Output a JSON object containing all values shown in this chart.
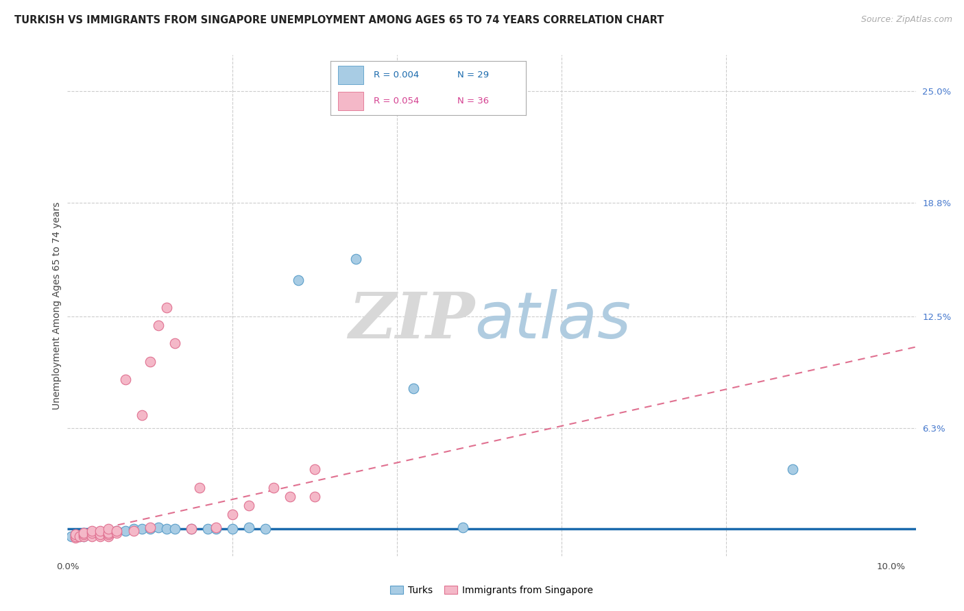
{
  "title": "TURKISH VS IMMIGRANTS FROM SINGAPORE UNEMPLOYMENT AMONG AGES 65 TO 74 YEARS CORRELATION CHART",
  "source": "Source: ZipAtlas.com",
  "ylabel": "Unemployment Among Ages 65 to 74 years",
  "xlim": [
    0.0,
    0.103
  ],
  "ylim": [
    -0.008,
    0.27
  ],
  "xticks": [
    0.0,
    0.02,
    0.04,
    0.06,
    0.08,
    0.1
  ],
  "xticklabels": [
    "0.0%",
    "",
    "",
    "",
    "",
    "10.0%"
  ],
  "ytick_positions": [
    0.063,
    0.125,
    0.188,
    0.25
  ],
  "ytick_labels": [
    "6.3%",
    "12.5%",
    "18.8%",
    "25.0%"
  ],
  "background_color": "#ffffff",
  "grid_color": "#cccccc",
  "watermark_zip": "ZIP",
  "watermark_atlas": "atlas",
  "turks_color": "#a8cce4",
  "turks_edge_color": "#5a9ec9",
  "singapore_color": "#f4b8c8",
  "singapore_edge_color": "#e07090",
  "turks_label": "Turks",
  "singapore_label": "Immigrants from Singapore",
  "turks_x": [
    0.0005,
    0.001,
    0.0015,
    0.002,
    0.002,
    0.0025,
    0.003,
    0.003,
    0.004,
    0.005,
    0.006,
    0.007,
    0.008,
    0.009,
    0.01,
    0.011,
    0.012,
    0.013,
    0.015,
    0.017,
    0.018,
    0.02,
    0.022,
    0.024,
    0.028,
    0.035,
    0.042,
    0.048,
    0.088
  ],
  "turks_y": [
    0.003,
    0.004,
    0.003,
    0.005,
    0.003,
    0.004,
    0.005,
    0.004,
    0.004,
    0.005,
    0.006,
    0.006,
    0.007,
    0.007,
    0.007,
    0.008,
    0.007,
    0.007,
    0.007,
    0.007,
    0.007,
    0.007,
    0.008,
    0.007,
    0.145,
    0.157,
    0.085,
    0.008,
    0.04
  ],
  "singapore_x": [
    0.001,
    0.001,
    0.001,
    0.0015,
    0.002,
    0.002,
    0.002,
    0.003,
    0.003,
    0.003,
    0.004,
    0.004,
    0.004,
    0.005,
    0.005,
    0.005,
    0.005,
    0.006,
    0.006,
    0.007,
    0.008,
    0.009,
    0.01,
    0.01,
    0.011,
    0.012,
    0.013,
    0.015,
    0.016,
    0.018,
    0.02,
    0.022,
    0.025,
    0.027,
    0.03,
    0.03
  ],
  "singapore_y": [
    0.002,
    0.003,
    0.004,
    0.003,
    0.003,
    0.004,
    0.005,
    0.003,
    0.005,
    0.006,
    0.003,
    0.004,
    0.006,
    0.003,
    0.004,
    0.005,
    0.007,
    0.005,
    0.006,
    0.09,
    0.006,
    0.07,
    0.008,
    0.1,
    0.12,
    0.13,
    0.11,
    0.007,
    0.03,
    0.008,
    0.015,
    0.02,
    0.03,
    0.025,
    0.025,
    0.04
  ],
  "turks_trendline_x": [
    0.0,
    0.103
  ],
  "turks_trendline_y": [
    0.0072,
    0.0072
  ],
  "singapore_trendline_x": [
    0.0,
    0.103
  ],
  "singapore_trendline_y": [
    0.003,
    0.108
  ],
  "legend_color_blue": "#1a6aad",
  "legend_color_pink": "#d44090",
  "legend_r1": "R = 0.004",
  "legend_n1": "N = 29",
  "legend_r2": "R = 0.054",
  "legend_n2": "N = 36"
}
